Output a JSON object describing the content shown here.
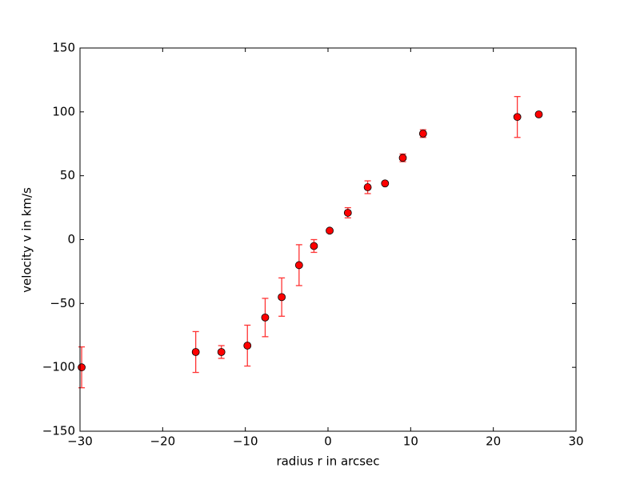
{
  "chart_data": {
    "type": "errorbar",
    "xlabel": "radius r in arcsec",
    "ylabel": "velocity v in km/s",
    "x": [
      -29.8,
      -16,
      -12.9,
      -9.75,
      -7.6,
      -5.6,
      -3.5,
      -1.7,
      0.2,
      2.4,
      4.8,
      6.9,
      9.05,
      11.5,
      22.9,
      25.5
    ],
    "y": [
      -100,
      -88,
      -88,
      -83,
      -61,
      -45,
      -20,
      -5,
      7,
      21,
      41,
      44,
      64,
      83,
      96,
      98
    ],
    "yerr": [
      16,
      16,
      5,
      16,
      15,
      15,
      16,
      5,
      1,
      4,
      5,
      1,
      3,
      3,
      16,
      1
    ],
    "color": "#ff0000",
    "errcolor": "#ff3333",
    "xlim": [
      -30,
      30
    ],
    "ylim": [
      -150,
      150
    ],
    "xticks": [
      {
        "value": -30,
        "label": "−30"
      },
      {
        "value": -20,
        "label": "−20"
      },
      {
        "value": -10,
        "label": "−10"
      },
      0,
      10,
      20,
      30
    ],
    "yticks": [
      {
        "value": -150,
        "label": "−150"
      },
      {
        "value": -100,
        "label": "−100"
      },
      {
        "value": -50,
        "label": "−50"
      },
      0,
      50,
      100,
      150
    ],
    "grid": false
  }
}
